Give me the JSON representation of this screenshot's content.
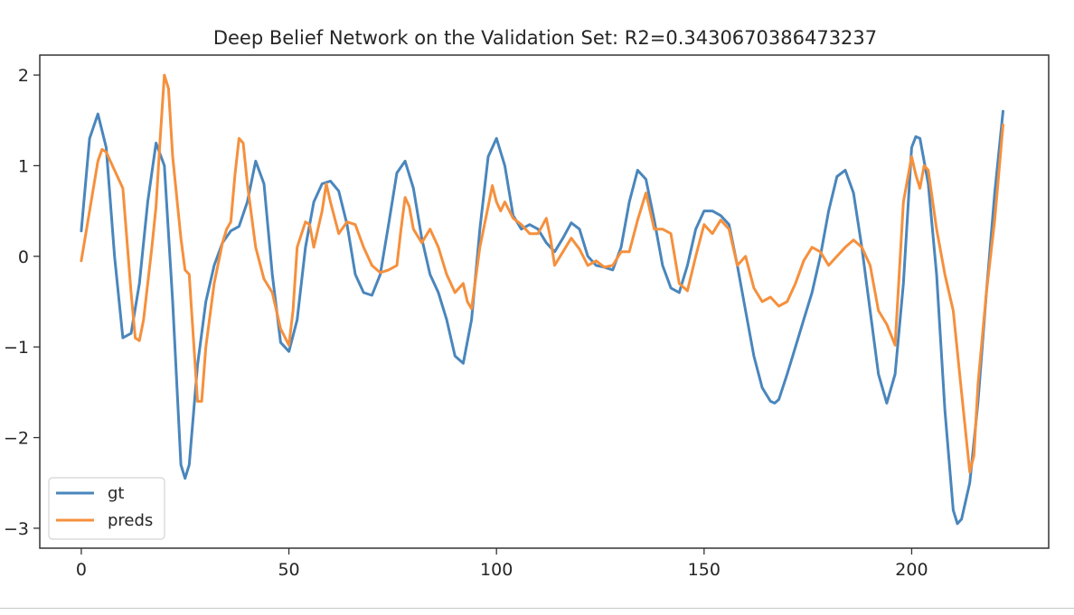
{
  "chart_data": {
    "type": "line",
    "title": "Deep Belief Network on the Validation Set: R2=0.3430670386473237",
    "xlabel": "",
    "ylabel": "",
    "xlim": [
      -10,
      233
    ],
    "ylim": [
      -3.22,
      2.22
    ],
    "xticks": [
      0,
      50,
      100,
      150,
      200
    ],
    "yticks": [
      2,
      1,
      0,
      -1,
      -2,
      -3
    ],
    "ytick_labels": [
      "2",
      "1",
      "0",
      "−1",
      "−2",
      "−3"
    ],
    "legend_position": "lower-left",
    "grid": false,
    "series": [
      {
        "name": "gt",
        "color": "#4a86bc",
        "points": [
          [
            0,
            0.28
          ],
          [
            2,
            1.3
          ],
          [
            4,
            1.57
          ],
          [
            6,
            1.2
          ],
          [
            8,
            0.0
          ],
          [
            10,
            -0.9
          ],
          [
            12,
            -0.85
          ],
          [
            14,
            -0.3
          ],
          [
            16,
            0.6
          ],
          [
            18,
            1.25
          ],
          [
            20,
            1.0
          ],
          [
            22,
            -0.5
          ],
          [
            24,
            -2.3
          ],
          [
            25,
            -2.45
          ],
          [
            26,
            -2.3
          ],
          [
            28,
            -1.2
          ],
          [
            30,
            -0.5
          ],
          [
            32,
            -0.1
          ],
          [
            34,
            0.15
          ],
          [
            36,
            0.28
          ],
          [
            38,
            0.33
          ],
          [
            40,
            0.6
          ],
          [
            42,
            1.05
          ],
          [
            44,
            0.8
          ],
          [
            46,
            -0.2
          ],
          [
            48,
            -0.95
          ],
          [
            50,
            -1.05
          ],
          [
            52,
            -0.7
          ],
          [
            54,
            0.1
          ],
          [
            56,
            0.6
          ],
          [
            58,
            0.8
          ],
          [
            60,
            0.83
          ],
          [
            62,
            0.72
          ],
          [
            64,
            0.35
          ],
          [
            66,
            -0.2
          ],
          [
            68,
            -0.4
          ],
          [
            70,
            -0.43
          ],
          [
            72,
            -0.2
          ],
          [
            74,
            0.35
          ],
          [
            76,
            0.92
          ],
          [
            78,
            1.05
          ],
          [
            80,
            0.75
          ],
          [
            82,
            0.2
          ],
          [
            84,
            -0.2
          ],
          [
            86,
            -0.4
          ],
          [
            88,
            -0.7
          ],
          [
            90,
            -1.1
          ],
          [
            92,
            -1.18
          ],
          [
            94,
            -0.7
          ],
          [
            96,
            0.3
          ],
          [
            98,
            1.1
          ],
          [
            100,
            1.3
          ],
          [
            102,
            1.0
          ],
          [
            104,
            0.45
          ],
          [
            106,
            0.3
          ],
          [
            108,
            0.35
          ],
          [
            110,
            0.3
          ],
          [
            112,
            0.15
          ],
          [
            114,
            0.05
          ],
          [
            116,
            0.2
          ],
          [
            118,
            0.37
          ],
          [
            120,
            0.3
          ],
          [
            122,
            0.0
          ],
          [
            124,
            -0.1
          ],
          [
            126,
            -0.12
          ],
          [
            128,
            -0.15
          ],
          [
            130,
            0.1
          ],
          [
            132,
            0.6
          ],
          [
            134,
            0.95
          ],
          [
            136,
            0.85
          ],
          [
            138,
            0.4
          ],
          [
            140,
            -0.1
          ],
          [
            142,
            -0.35
          ],
          [
            144,
            -0.4
          ],
          [
            146,
            -0.1
          ],
          [
            148,
            0.3
          ],
          [
            150,
            0.5
          ],
          [
            152,
            0.5
          ],
          [
            154,
            0.45
          ],
          [
            156,
            0.35
          ],
          [
            158,
            -0.1
          ],
          [
            160,
            -0.6
          ],
          [
            162,
            -1.1
          ],
          [
            164,
            -1.45
          ],
          [
            166,
            -1.6
          ],
          [
            167,
            -1.62
          ],
          [
            168,
            -1.58
          ],
          [
            170,
            -1.3
          ],
          [
            172,
            -1.0
          ],
          [
            174,
            -0.7
          ],
          [
            176,
            -0.4
          ],
          [
            178,
            0.0
          ],
          [
            180,
            0.5
          ],
          [
            182,
            0.88
          ],
          [
            184,
            0.95
          ],
          [
            186,
            0.7
          ],
          [
            188,
            0.1
          ],
          [
            190,
            -0.6
          ],
          [
            192,
            -1.3
          ],
          [
            194,
            -1.62
          ],
          [
            196,
            -1.3
          ],
          [
            198,
            -0.3
          ],
          [
            200,
            1.2
          ],
          [
            201,
            1.32
          ],
          [
            202,
            1.3
          ],
          [
            204,
            0.8
          ],
          [
            206,
            -0.2
          ],
          [
            208,
            -1.7
          ],
          [
            210,
            -2.8
          ],
          [
            211,
            -2.95
          ],
          [
            212,
            -2.9
          ],
          [
            214,
            -2.5
          ],
          [
            216,
            -1.6
          ],
          [
            218,
            -0.4
          ],
          [
            220,
            0.7
          ],
          [
            222,
            1.6
          ]
        ]
      },
      {
        "name": "preds",
        "color": "#f5903d",
        "points": [
          [
            0,
            -0.05
          ],
          [
            2,
            0.5
          ],
          [
            4,
            1.05
          ],
          [
            5,
            1.18
          ],
          [
            6,
            1.15
          ],
          [
            8,
            0.95
          ],
          [
            10,
            0.75
          ],
          [
            12,
            -0.4
          ],
          [
            13,
            -0.9
          ],
          [
            14,
            -0.93
          ],
          [
            15,
            -0.7
          ],
          [
            17,
            0.1
          ],
          [
            18,
            0.55
          ],
          [
            19,
            1.3
          ],
          [
            20,
            2.0
          ],
          [
            21,
            1.85
          ],
          [
            22,
            1.1
          ],
          [
            24,
            0.2
          ],
          [
            25,
            -0.15
          ],
          [
            26,
            -0.2
          ],
          [
            28,
            -1.6
          ],
          [
            29,
            -1.6
          ],
          [
            30,
            -1.0
          ],
          [
            32,
            -0.3
          ],
          [
            34,
            0.15
          ],
          [
            35,
            0.3
          ],
          [
            36,
            0.38
          ],
          [
            37,
            0.9
          ],
          [
            38,
            1.3
          ],
          [
            39,
            1.25
          ],
          [
            40,
            0.8
          ],
          [
            42,
            0.1
          ],
          [
            44,
            -0.25
          ],
          [
            46,
            -0.4
          ],
          [
            48,
            -0.8
          ],
          [
            50,
            -0.98
          ],
          [
            51,
            -0.6
          ],
          [
            52,
            0.1
          ],
          [
            54,
            0.38
          ],
          [
            55,
            0.35
          ],
          [
            56,
            0.1
          ],
          [
            58,
            0.5
          ],
          [
            59,
            0.8
          ],
          [
            60,
            0.6
          ],
          [
            62,
            0.25
          ],
          [
            64,
            0.38
          ],
          [
            66,
            0.35
          ],
          [
            68,
            0.1
          ],
          [
            70,
            -0.1
          ],
          [
            72,
            -0.18
          ],
          [
            74,
            -0.15
          ],
          [
            76,
            -0.1
          ],
          [
            77,
            0.3
          ],
          [
            78,
            0.65
          ],
          [
            79,
            0.55
          ],
          [
            80,
            0.3
          ],
          [
            82,
            0.15
          ],
          [
            84,
            0.3
          ],
          [
            86,
            0.1
          ],
          [
            88,
            -0.2
          ],
          [
            90,
            -0.4
          ],
          [
            92,
            -0.3
          ],
          [
            93,
            -0.5
          ],
          [
            94,
            -0.58
          ],
          [
            96,
            0.1
          ],
          [
            98,
            0.55
          ],
          [
            99,
            0.78
          ],
          [
            100,
            0.6
          ],
          [
            101,
            0.5
          ],
          [
            102,
            0.6
          ],
          [
            104,
            0.42
          ],
          [
            106,
            0.35
          ],
          [
            108,
            0.25
          ],
          [
            110,
            0.25
          ],
          [
            112,
            0.42
          ],
          [
            113,
            0.2
          ],
          [
            114,
            -0.1
          ],
          [
            116,
            0.05
          ],
          [
            118,
            0.2
          ],
          [
            120,
            0.08
          ],
          [
            122,
            -0.1
          ],
          [
            124,
            -0.05
          ],
          [
            126,
            -0.12
          ],
          [
            128,
            -0.1
          ],
          [
            130,
            0.05
          ],
          [
            132,
            0.05
          ],
          [
            134,
            0.4
          ],
          [
            136,
            0.7
          ],
          [
            138,
            0.3
          ],
          [
            140,
            0.3
          ],
          [
            142,
            0.25
          ],
          [
            144,
            -0.3
          ],
          [
            146,
            -0.38
          ],
          [
            148,
            0.0
          ],
          [
            150,
            0.35
          ],
          [
            152,
            0.25
          ],
          [
            154,
            0.4
          ],
          [
            156,
            0.3
          ],
          [
            158,
            -0.1
          ],
          [
            160,
            0.0
          ],
          [
            162,
            -0.35
          ],
          [
            164,
            -0.5
          ],
          [
            166,
            -0.45
          ],
          [
            168,
            -0.55
          ],
          [
            170,
            -0.5
          ],
          [
            172,
            -0.3
          ],
          [
            174,
            -0.05
          ],
          [
            176,
            0.1
          ],
          [
            178,
            0.05
          ],
          [
            180,
            -0.1
          ],
          [
            182,
            0.0
          ],
          [
            184,
            0.1
          ],
          [
            186,
            0.18
          ],
          [
            188,
            0.1
          ],
          [
            190,
            -0.1
          ],
          [
            192,
            -0.6
          ],
          [
            194,
            -0.75
          ],
          [
            196,
            -0.98
          ],
          [
            198,
            0.6
          ],
          [
            200,
            1.1
          ],
          [
            201,
            0.9
          ],
          [
            202,
            0.75
          ],
          [
            203,
            1.0
          ],
          [
            204,
            0.95
          ],
          [
            206,
            0.3
          ],
          [
            208,
            -0.2
          ],
          [
            210,
            -0.6
          ],
          [
            212,
            -1.5
          ],
          [
            214,
            -2.38
          ],
          [
            215,
            -2.2
          ],
          [
            216,
            -1.4
          ],
          [
            218,
            -0.4
          ],
          [
            220,
            0.4
          ],
          [
            222,
            1.45
          ]
        ]
      }
    ]
  }
}
